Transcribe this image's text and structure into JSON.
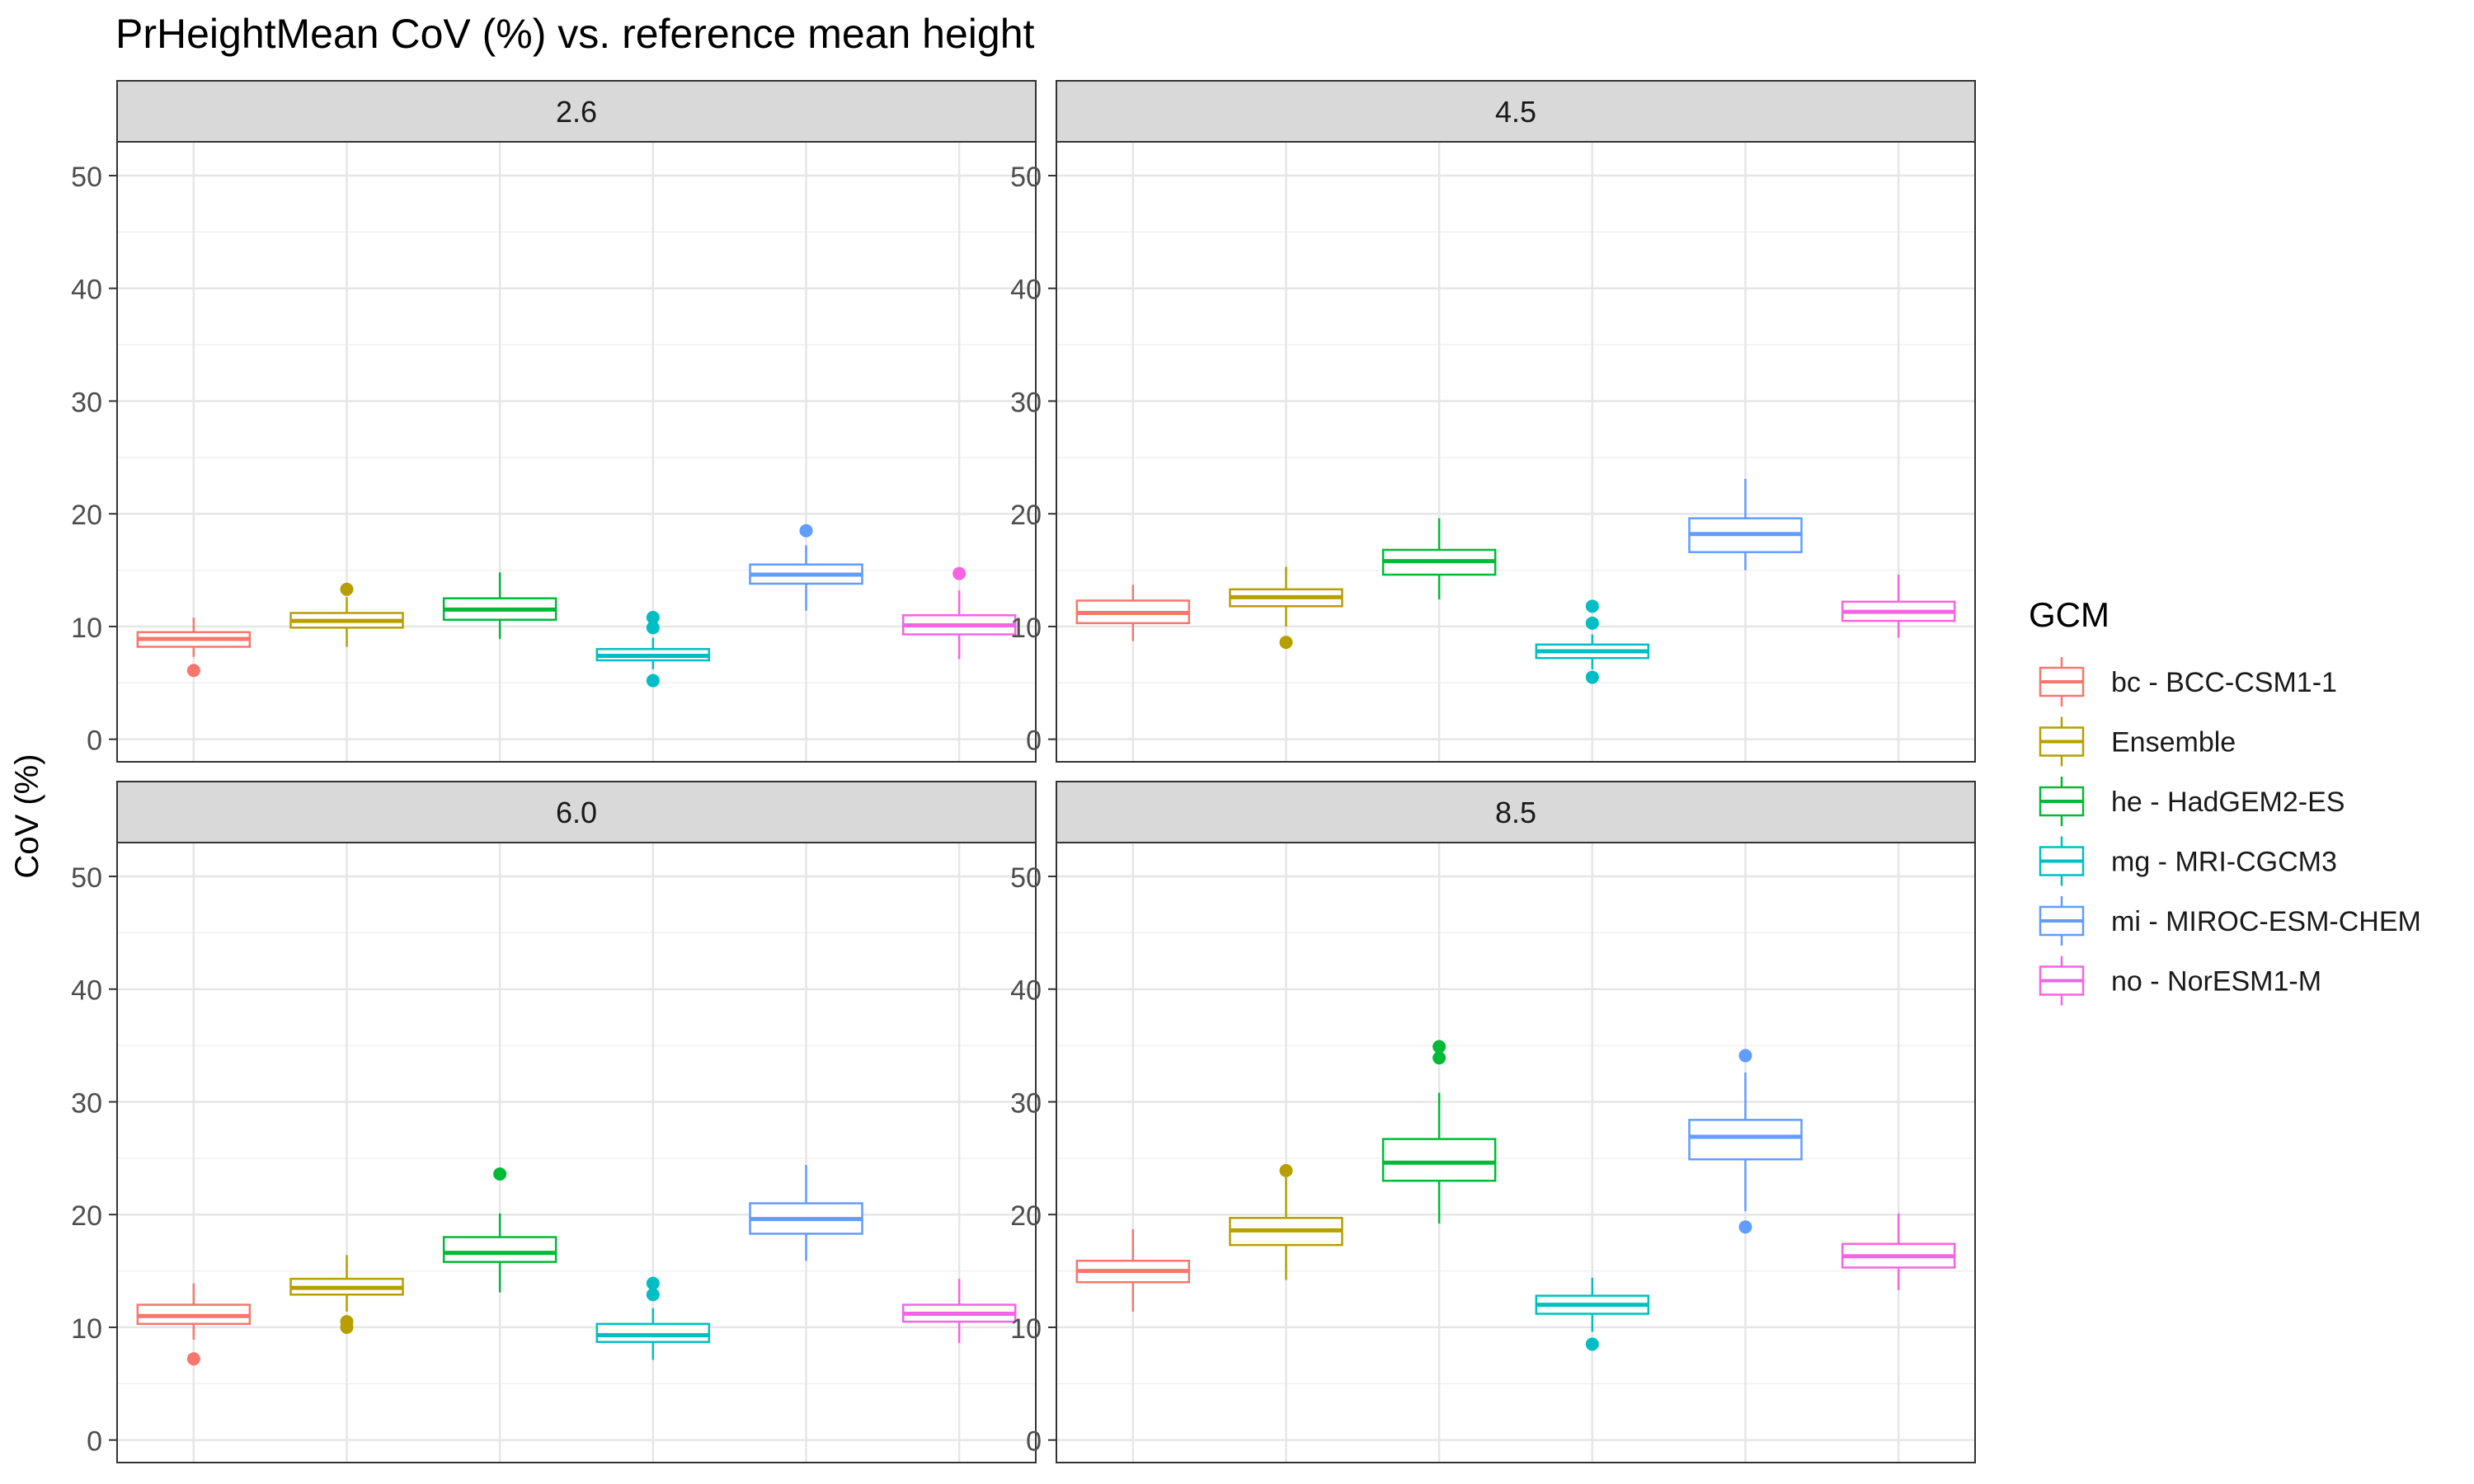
{
  "title": "PrHeightMean CoV (%) vs. reference mean height",
  "chart_data": {
    "type": "box",
    "title": "PrHeightMean CoV (%) vs. reference mean height",
    "ylabel": "CoV (%)",
    "xlabel": "",
    "ylim": [
      -2,
      53
    ],
    "yticks": [
      0,
      10,
      20,
      30,
      40,
      50
    ],
    "grid": true,
    "facet_layout": "2x2",
    "legend": {
      "title": "GCM",
      "position": "right",
      "entries": [
        {
          "label": "bc - BCC-CSM1-1",
          "color": "#F8766D"
        },
        {
          "label": "Ensemble",
          "color": "#B79F00"
        },
        {
          "label": "he - HadGEM2-ES",
          "color": "#00BA38"
        },
        {
          "label": "mg - MRI-CGCM3",
          "color": "#00BFC4"
        },
        {
          "label": "mi - MIROC-ESM-CHEM",
          "color": "#619CFF"
        },
        {
          "label": "no - NorESM1-M",
          "color": "#F564E3"
        }
      ]
    },
    "panels": [
      {
        "strip": "2.6",
        "boxes": [
          {
            "q1": 8.2,
            "median": 8.9,
            "q3": 9.5,
            "low": 7.3,
            "high": 10.8,
            "outliers": [
              6.1
            ]
          },
          {
            "q1": 9.9,
            "median": 10.5,
            "q3": 11.2,
            "low": 8.2,
            "high": 12.6,
            "outliers": [
              13.3
            ]
          },
          {
            "q1": 10.6,
            "median": 11.5,
            "q3": 12.5,
            "low": 8.9,
            "high": 14.8,
            "outliers": []
          },
          {
            "q1": 7.0,
            "median": 7.4,
            "q3": 8.0,
            "low": 6.2,
            "high": 9.0,
            "outliers": [
              10.8,
              9.9,
              5.2
            ]
          },
          {
            "q1": 13.8,
            "median": 14.6,
            "q3": 15.5,
            "low": 11.4,
            "high": 17.2,
            "outliers": [
              18.5
            ]
          },
          {
            "q1": 9.3,
            "median": 10.1,
            "q3": 11.0,
            "low": 7.1,
            "high": 13.2,
            "outliers": [
              14.7
            ]
          }
        ]
      },
      {
        "strip": "4.5",
        "boxes": [
          {
            "q1": 10.3,
            "median": 11.2,
            "q3": 12.3,
            "low": 8.7,
            "high": 13.7,
            "outliers": []
          },
          {
            "q1": 11.8,
            "median": 12.6,
            "q3": 13.3,
            "low": 10.0,
            "high": 15.3,
            "outliers": [
              8.6
            ]
          },
          {
            "q1": 14.6,
            "median": 15.8,
            "q3": 16.8,
            "low": 12.4,
            "high": 19.6,
            "outliers": []
          },
          {
            "q1": 7.2,
            "median": 7.8,
            "q3": 8.4,
            "low": 6.2,
            "high": 9.3,
            "outliers": [
              11.8,
              10.3,
              5.5
            ]
          },
          {
            "q1": 16.6,
            "median": 18.2,
            "q3": 19.6,
            "low": 15.0,
            "high": 23.1,
            "outliers": []
          },
          {
            "q1": 10.5,
            "median": 11.3,
            "q3": 12.2,
            "low": 9.0,
            "high": 14.6,
            "outliers": []
          }
        ]
      },
      {
        "strip": "6.0",
        "boxes": [
          {
            "q1": 10.3,
            "median": 11.0,
            "q3": 12.0,
            "low": 8.9,
            "high": 13.9,
            "outliers": [
              7.2
            ]
          },
          {
            "q1": 12.9,
            "median": 13.5,
            "q3": 14.3,
            "low": 11.4,
            "high": 16.4,
            "outliers": [
              10.5,
              10.0
            ]
          },
          {
            "q1": 15.8,
            "median": 16.6,
            "q3": 18.0,
            "low": 13.1,
            "high": 20.1,
            "outliers": [
              23.6
            ]
          },
          {
            "q1": 8.7,
            "median": 9.3,
            "q3": 10.3,
            "low": 7.1,
            "high": 11.7,
            "outliers": [
              13.9,
              12.9
            ]
          },
          {
            "q1": 18.3,
            "median": 19.6,
            "q3": 21.0,
            "low": 15.9,
            "high": 24.4,
            "outliers": []
          },
          {
            "q1": 10.5,
            "median": 11.2,
            "q3": 12.0,
            "low": 8.6,
            "high": 14.3,
            "outliers": []
          }
        ]
      },
      {
        "strip": "8.5",
        "boxes": [
          {
            "q1": 14.0,
            "median": 15.0,
            "q3": 15.9,
            "low": 11.4,
            "high": 18.7,
            "outliers": []
          },
          {
            "q1": 17.3,
            "median": 18.6,
            "q3": 19.7,
            "low": 14.2,
            "high": 23.3,
            "outliers": [
              23.9
            ]
          },
          {
            "q1": 23.0,
            "median": 24.6,
            "q3": 26.7,
            "low": 19.2,
            "high": 30.8,
            "outliers": [
              34.9,
              33.9
            ]
          },
          {
            "q1": 11.2,
            "median": 12.0,
            "q3": 12.8,
            "low": 9.6,
            "high": 14.4,
            "outliers": [
              8.5
            ]
          },
          {
            "q1": 24.9,
            "median": 26.9,
            "q3": 28.4,
            "low": 20.3,
            "high": 32.6,
            "outliers": [
              34.1,
              18.9
            ]
          },
          {
            "q1": 15.3,
            "median": 16.3,
            "q3": 17.4,
            "low": 13.3,
            "high": 20.1,
            "outliers": []
          }
        ]
      }
    ]
  }
}
